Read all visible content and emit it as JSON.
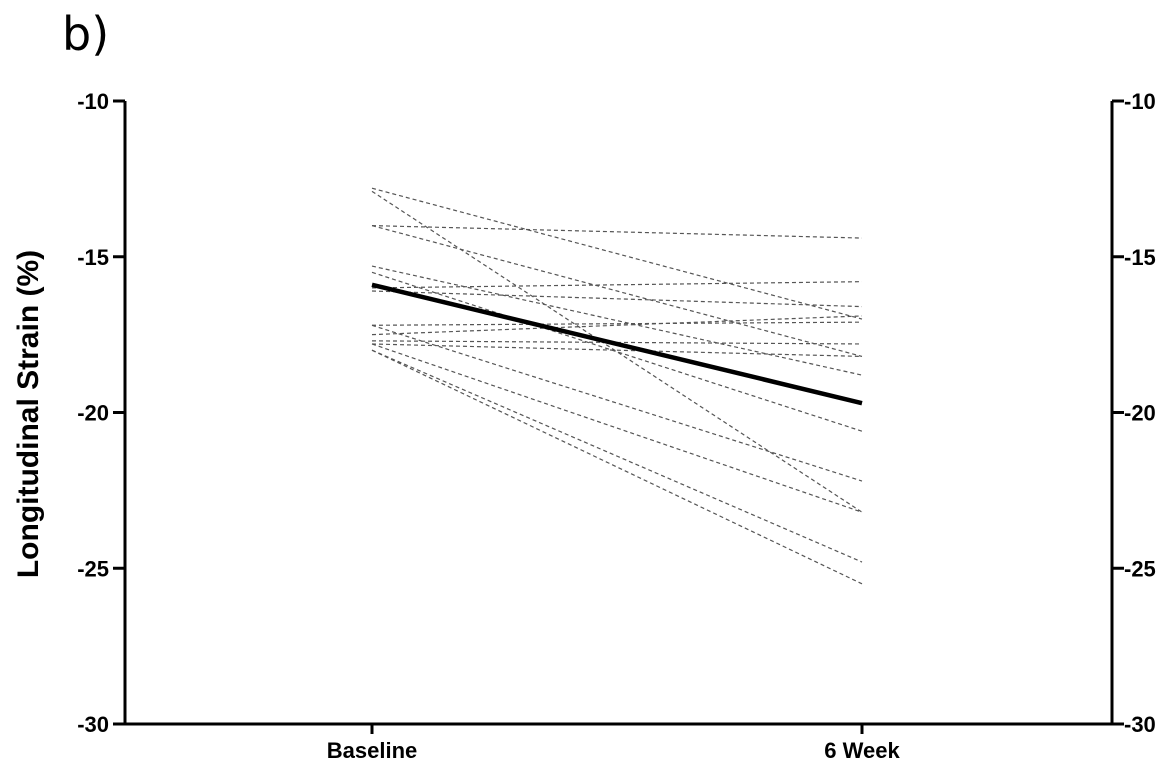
{
  "panel_label": "b)",
  "chart_data": {
    "type": "line",
    "title": "",
    "categories": [
      "Baseline",
      "6 Week"
    ],
    "xlabel": "",
    "ylabel": "Longitudinal Strain (%)",
    "ylim": [
      -30,
      -10
    ],
    "yticks": [
      -10,
      -15,
      -20,
      -25,
      -30
    ],
    "secondary_y_axis": true,
    "grid": false,
    "legend": "none",
    "individual_series": [
      {
        "values": [
          -12.8,
          -17.0
        ]
      },
      {
        "values": [
          -12.9,
          -23.2
        ]
      },
      {
        "values": [
          -14.0,
          -14.4
        ]
      },
      {
        "values": [
          -14.0,
          -18.2
        ]
      },
      {
        "values": [
          -15.3,
          -18.8
        ]
      },
      {
        "values": [
          -15.5,
          -20.6
        ]
      },
      {
        "values": [
          -16.0,
          -15.8
        ]
      },
      {
        "values": [
          -16.1,
          -16.6
        ]
      },
      {
        "values": [
          -17.2,
          -17.1
        ]
      },
      {
        "values": [
          -17.2,
          -22.2
        ]
      },
      {
        "values": [
          -17.5,
          -16.9
        ]
      },
      {
        "values": [
          -17.7,
          -17.8
        ]
      },
      {
        "values": [
          -17.8,
          -18.2
        ]
      },
      {
        "values": [
          -17.8,
          -23.2
        ]
      },
      {
        "values": [
          -18.0,
          -24.8
        ]
      },
      {
        "values": [
          -18.0,
          -25.5
        ]
      }
    ],
    "mean_series": {
      "values": [
        -15.9,
        -19.7
      ]
    },
    "colors": {
      "individual": "#555555",
      "mean": "#000000"
    }
  }
}
